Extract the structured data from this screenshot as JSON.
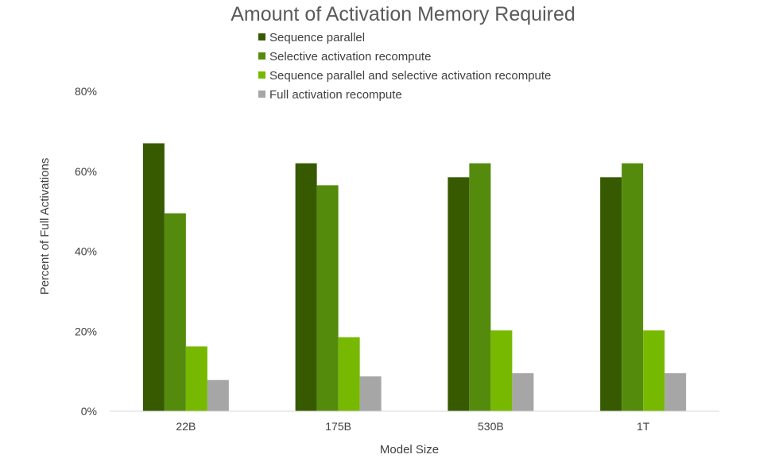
{
  "chart_data": {
    "type": "bar",
    "title": "Amount of Activation Memory Required",
    "xlabel": "Model Size",
    "ylabel": "Percent of Full Activations",
    "categories": [
      "22B",
      "175B",
      "530B",
      "1T"
    ],
    "series": [
      {
        "name": "Sequence parallel",
        "color": "#375a00",
        "values": [
          67,
          62,
          58.5,
          58.5
        ]
      },
      {
        "name": "Selective activation recompute",
        "color": "#558b0d",
        "values": [
          49.5,
          56.5,
          62,
          62
        ]
      },
      {
        "name": "Sequence parallel and selective activation recompute",
        "color": "#76b900",
        "values": [
          16.2,
          18.5,
          20.2,
          20.2
        ]
      },
      {
        "name": "Full activation recompute",
        "color": "#a6a6a6",
        "values": [
          7.8,
          8.7,
          9.5,
          9.5
        ]
      }
    ],
    "ylim": [
      0,
      80
    ],
    "yticks": [
      0,
      20,
      40,
      60,
      80
    ],
    "ytick_labels": [
      "0%",
      "20%",
      "40%",
      "60%",
      "80%"
    ],
    "grid": false,
    "legend_position": "top"
  }
}
